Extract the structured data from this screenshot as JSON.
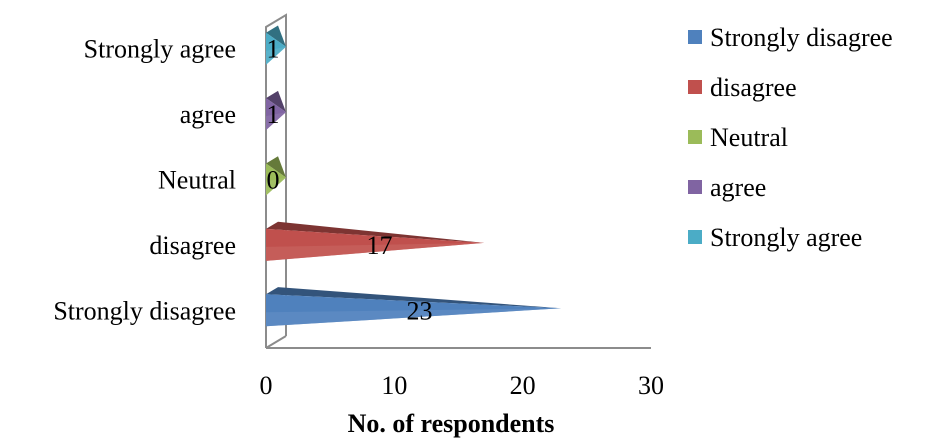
{
  "chart_data": {
    "type": "bar",
    "orientation": "horizontal",
    "categories": [
      "Strongly disagree",
      "disagree",
      "Neutral",
      "agree",
      "Strongly agree"
    ],
    "values": [
      23,
      17,
      0,
      1,
      1
    ],
    "colors": [
      "#4F81BD",
      "#C0504D",
      "#9BBB59",
      "#8064A2",
      "#4BACC6"
    ],
    "xlabel": "No. of respondents",
    "ylabel": "",
    "xlim": [
      0,
      30
    ],
    "xticks": [
      "0",
      "10",
      "20",
      "30"
    ],
    "grid": false,
    "legend": {
      "placement": "right",
      "entries": [
        "Strongly disagree",
        "disagree",
        "Neutral",
        "agree",
        "Strongly agree"
      ]
    }
  }
}
